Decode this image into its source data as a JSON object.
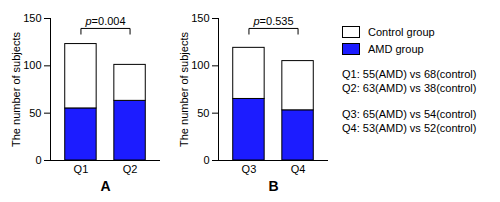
{
  "chart_data": [
    {
      "type": "bar",
      "title": "A",
      "stacked": true,
      "categories": [
        "Q1",
        "Q2"
      ],
      "series": [
        {
          "name": "AMD group",
          "color": "#1c1cff",
          "values": [
            55,
            63
          ]
        },
        {
          "name": "Control group",
          "color": "#ffffff",
          "values": [
            68,
            38
          ]
        }
      ],
      "y_label": "The number of subjects",
      "ylim": [
        0,
        150
      ],
      "yticks": [
        0,
        50,
        100,
        150
      ],
      "annotations": [
        {
          "text": "p=0.004",
          "between": [
            "Q1",
            "Q2"
          ]
        }
      ],
      "notes": [
        "Q1: 55(AMD) vs 68(control)",
        "Q2: 63(AMD) vs 38(control)"
      ]
    },
    {
      "type": "bar",
      "title": "B",
      "stacked": true,
      "categories": [
        "Q3",
        "Q4"
      ],
      "series": [
        {
          "name": "AMD group",
          "color": "#1c1cff",
          "values": [
            65,
            53
          ]
        },
        {
          "name": "Control group",
          "color": "#ffffff",
          "values": [
            54,
            52
          ]
        }
      ],
      "y_label": "The number of subjects",
      "ylim": [
        0,
        150
      ],
      "yticks": [
        0,
        50,
        100,
        150
      ],
      "annotations": [
        {
          "text": "p=0.535",
          "between": [
            "Q3",
            "Q4"
          ]
        }
      ],
      "notes": [
        "Q3: 65(AMD) vs 54(control)",
        "Q4: 53(AMD) vs 52(control)"
      ]
    }
  ]
}
